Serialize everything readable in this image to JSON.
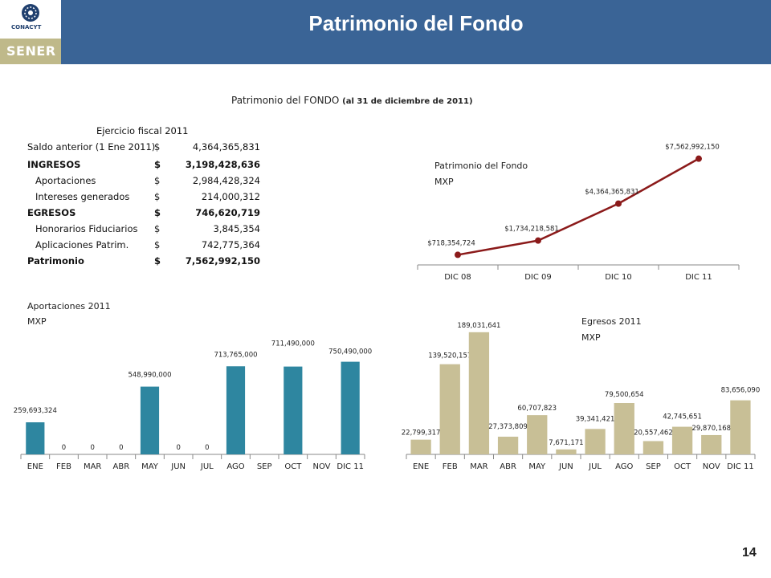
{
  "header": {
    "title": "Patrimonio del Fondo",
    "logo_conacyt": "CONACYT",
    "logo_sener": "SENER"
  },
  "subtitle": {
    "main": "Patrimonio del FONDO",
    "detail": "(al 31 de diciembre de 2011)"
  },
  "table": {
    "heading": "Ejercicio fiscal 2011",
    "rows": [
      {
        "label": "Saldo anterior (1 Ene 2011)",
        "currency": "$",
        "amount": "4,364,365,831"
      },
      {
        "label": "INGRESOS",
        "currency": "$",
        "amount": "3,198,428,636"
      },
      {
        "label": "Aportaciones",
        "currency": "$",
        "amount": "2,984,428,324"
      },
      {
        "label": "Intereses generados",
        "currency": "$",
        "amount": "214,000,312"
      },
      {
        "label": "EGRESOS",
        "currency": "$",
        "amount": "746,620,719"
      },
      {
        "label": "Honorarios Fiduciarios",
        "currency": "$",
        "amount": "3,845,354"
      },
      {
        "label": "Aplicaciones Patrim.",
        "currency": "$",
        "amount": "742,775,364"
      },
      {
        "label": "Patrimonio",
        "currency": "$",
        "amount": "7,562,992,150"
      }
    ]
  },
  "page_number": "14",
  "colors": {
    "header_bar": "#3a6496",
    "sener_band": "#bfb98a",
    "line_series": "#8b1a1a",
    "aportaciones_bars": "#2e86a0",
    "egresos_bars": "#c8bf96"
  },
  "chart_data": [
    {
      "type": "line",
      "title": "Patrimonio del Fondo",
      "subtitle": "MXP",
      "categories": [
        "DIC 08",
        "DIC 09",
        "DIC 10",
        "DIC 11"
      ],
      "values": [
        718354724,
        1734218581,
        4364365831,
        7562992150
      ],
      "data_labels": [
        "$718,354,724",
        "$1,734,218,581",
        "$4,364,365,831",
        "$7,562,992,150"
      ],
      "ylim": [
        0,
        8000000000
      ],
      "grid": false
    },
    {
      "type": "bar",
      "title": "Aportaciones 2011",
      "subtitle": "MXP",
      "categories": [
        "ENE",
        "FEB",
        "MAR",
        "ABR",
        "MAY",
        "JUN",
        "JUL",
        "AGO",
        "SEP",
        "OCT",
        "NOV",
        "DIC 11"
      ],
      "values": [
        259693324,
        0,
        0,
        0,
        548990000,
        0,
        0,
        713765000,
        null,
        711490000,
        null,
        750490000
      ],
      "data_labels": [
        "259,693,324",
        "0",
        "0",
        "0",
        "548,990,000",
        "0",
        "0",
        "713,765,000",
        "",
        "711,490,000",
        "",
        "750,490,000"
      ],
      "ylim": [
        0,
        800000000
      ],
      "grid": false
    },
    {
      "type": "bar",
      "title": "Egresos 2011",
      "subtitle": "MXP",
      "categories": [
        "ENE",
        "FEB",
        "MAR",
        "ABR",
        "MAY",
        "JUN",
        "JUL",
        "AGO",
        "SEP",
        "OCT",
        "NOV",
        "DIC 11"
      ],
      "values": [
        22799317,
        139520157,
        189031641,
        27373809,
        60707823,
        7671171,
        39341421,
        79500654,
        20557462,
        42745651,
        29870168,
        83656090
      ],
      "data_labels": [
        "22,799,317",
        "139,520,157",
        "189,031,641",
        "27,373,809",
        "60,707,823",
        "7,671,171",
        "39,341,421",
        "79,500,654",
        "20,557,462",
        "42,745,651",
        "29,870,168",
        "83,656,090"
      ],
      "ylim": [
        0,
        200000000
      ],
      "grid": false
    }
  ]
}
